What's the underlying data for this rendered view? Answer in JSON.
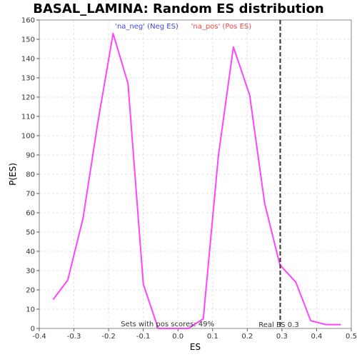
{
  "chart_data": {
    "type": "line",
    "title": "BASAL_LAMINA: Random ES distribution",
    "xlabel": "ES",
    "ylabel": "P(ES)",
    "xlim": [
      -0.4,
      0.5
    ],
    "ylim": [
      0,
      160
    ],
    "x_ticks": [
      "-0.4",
      "-0.3",
      "-0.2",
      "-0.1",
      "0.0",
      "0.1",
      "0.2",
      "0.3",
      "0.4",
      "0.5"
    ],
    "y_ticks": [
      "0",
      "10",
      "20",
      "30",
      "40",
      "50",
      "60",
      "70",
      "80",
      "90",
      "100",
      "110",
      "120",
      "130",
      "140",
      "150",
      "160"
    ],
    "grid": true,
    "legend": {
      "placement": "top-center",
      "neg_label": "'na_neg' (Neg ES)",
      "neg_color": "#4444ee",
      "pos_label": "'na_pos' (Pos ES)",
      "pos_color": "#ee4444"
    },
    "series": [
      {
        "color": "#ff44ff",
        "x": [
          -0.36,
          -0.318,
          -0.274,
          -0.231,
          -0.187,
          -0.144,
          -0.1,
          -0.057,
          -0.013,
          0.03,
          0.073,
          0.117,
          0.16,
          0.207,
          0.25,
          0.294,
          0.34,
          0.383,
          0.427,
          0.47
        ],
        "y": [
          15,
          25,
          57,
          107,
          153,
          127,
          23,
          0,
          0,
          0,
          5,
          90,
          146,
          121,
          65,
          33,
          24,
          4,
          2,
          2
        ]
      }
    ],
    "real_es": {
      "value": 0.295,
      "label": "Real ES 0.3",
      "color": "#333333"
    },
    "annotation": "Sets with pos scores: 49%"
  }
}
